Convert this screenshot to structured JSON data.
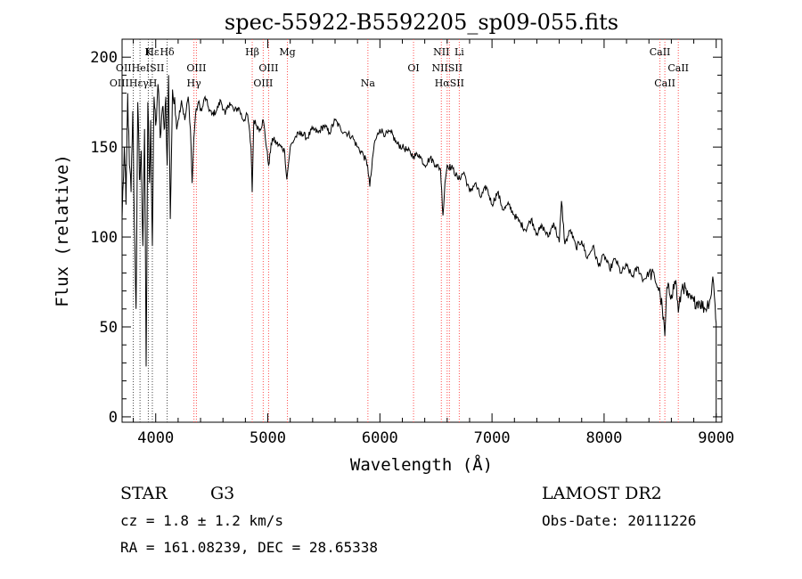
{
  "chart_data": {
    "type": "line",
    "title": "spec-55922-B5592205_sp09-055.fits",
    "xlabel": "Wavelength (Å)",
    "ylabel": "Flux (relative)",
    "xlim": [
      3700,
      9050
    ],
    "ylim": [
      -3,
      210
    ],
    "xticks": [
      4000,
      5000,
      6000,
      7000,
      8000,
      9000
    ],
    "yticks": [
      0,
      50,
      100,
      150,
      200
    ],
    "grid": false,
    "colors": {
      "line": "#000000",
      "marker": "#ff4d4d",
      "marker_dark": "#444444"
    },
    "series": [
      {
        "x": [
          3700,
          3720,
          3735,
          3750,
          3765,
          3780,
          3795,
          3810,
          3825,
          3840,
          3855,
          3870,
          3885,
          3900,
          3915,
          3930,
          3945,
          3955,
          3970,
          3985,
          4000,
          4020,
          4040,
          4060,
          4075,
          4090,
          4102,
          4115,
          4130,
          4150,
          4175,
          4200,
          4230,
          4260,
          4290,
          4310,
          4325,
          4340,
          4355,
          4380,
          4410,
          4440,
          4470,
          4500,
          4540,
          4580,
          4620,
          4660,
          4700,
          4740,
          4780,
          4820,
          4850,
          4861,
          4875,
          4900,
          4930,
          4960,
          5007,
          5040,
          5080,
          5120,
          5150,
          5170,
          5183,
          5200,
          5250,
          5300,
          5350,
          5400,
          5450,
          5500,
          5550,
          5600,
          5650,
          5700,
          5750,
          5800,
          5850,
          5890,
          5910,
          5950,
          6000,
          6050,
          6100,
          6150,
          6200,
          6250,
          6300,
          6350,
          6400,
          6450,
          6500,
          6540,
          6563,
          6580,
          6600,
          6650,
          6700,
          6750,
          6800,
          6850,
          6900,
          6950,
          7000,
          7050,
          7100,
          7150,
          7200,
          7250,
          7300,
          7350,
          7400,
          7450,
          7500,
          7550,
          7600,
          7620,
          7650,
          7700,
          7750,
          7800,
          7850,
          7900,
          7950,
          8000,
          8050,
          8100,
          8150,
          8200,
          8250,
          8300,
          8350,
          8400,
          8450,
          8480,
          8500,
          8520,
          8542,
          8560,
          8600,
          8640,
          8662,
          8700,
          8750,
          8800,
          8850,
          8900,
          8950,
          8970,
          8990,
          9000
        ],
        "y": [
          110,
          150,
          118,
          180,
          140,
          125,
          170,
          108,
          60,
          175,
          132,
          148,
          95,
          160,
          28,
          175,
          130,
          165,
          95,
          178,
          162,
          185,
          155,
          172,
          160,
          178,
          140,
          190,
          110,
          182,
          168,
          165,
          176,
          165,
          178,
          160,
          130,
          155,
          168,
          175,
          170,
          178,
          172,
          168,
          170,
          176,
          168,
          175,
          170,
          172,
          165,
          168,
          150,
          125,
          165,
          162,
          160,
          165,
          140,
          155,
          152,
          150,
          148,
          132,
          140,
          150,
          156,
          158,
          155,
          160,
          158,
          162,
          158,
          165,
          160,
          158,
          156,
          150,
          146,
          140,
          128,
          152,
          160,
          157,
          158,
          152,
          150,
          148,
          145,
          146,
          140,
          144,
          140,
          138,
          112,
          130,
          140,
          138,
          132,
          136,
          125,
          130,
          122,
          128,
          118,
          125,
          115,
          118,
          112,
          108,
          104,
          110,
          102,
          106,
          100,
          108,
          97,
          120,
          96,
          104,
          94,
          98,
          88,
          95,
          84,
          90,
          82,
          88,
          80,
          84,
          78,
          83,
          76,
          80,
          78,
          72,
          68,
          60,
          45,
          72,
          68,
          76,
          58,
          74,
          66,
          64,
          64,
          60,
          66,
          78,
          62,
          52
        ]
      }
    ],
    "line_markers": [
      {
        "label": "Hε",
        "x": 3970,
        "row": 0,
        "shade": "dark"
      },
      {
        "label": "K",
        "x": 3934,
        "row": 0,
        "shade": "dark"
      },
      {
        "label": "Hδ",
        "x": 4102,
        "row": 0,
        "shade": "dark"
      },
      {
        "label": "OIIHeISII",
        "x": 3860,
        "row": 1,
        "shade": "dark"
      },
      {
        "label": "OIII",
        "x": 4363,
        "row": 1,
        "shade": "red"
      },
      {
        "label": "OIIIHεγH",
        "x": 3800,
        "row": 2,
        "shade": "dark"
      },
      {
        "label": "Hγ",
        "x": 4341,
        "row": 2,
        "shade": "red"
      },
      {
        "label": "Hβ",
        "x": 4861,
        "row": 0,
        "shade": "red"
      },
      {
        "label": "Mg",
        "x": 5175,
        "row": 0,
        "shade": "red"
      },
      {
        "label": "OIII",
        "x": 5007,
        "row": 1,
        "shade": "red"
      },
      {
        "label": "OIII",
        "x": 4959,
        "row": 2,
        "shade": "red"
      },
      {
        "label": "Na",
        "x": 5893,
        "row": 2,
        "shade": "red"
      },
      {
        "label": "NII",
        "x": 6548,
        "row": 0,
        "shade": "red"
      },
      {
        "label": "Li",
        "x": 6708,
        "row": 0,
        "shade": "red"
      },
      {
        "label": "OI",
        "x": 6300,
        "row": 1,
        "shade": "red"
      },
      {
        "label": "NIISII",
        "x": 6600,
        "row": 1,
        "shade": "red"
      },
      {
        "label": "HαSII",
        "x": 6620,
        "row": 2,
        "shade": "red"
      },
      {
        "label": "CaII",
        "x": 8498,
        "row": 0,
        "shade": "red"
      },
      {
        "label": "CaII",
        "x": 8662,
        "row": 1,
        "shade": "red"
      },
      {
        "label": "CaII",
        "x": 8542,
        "row": 2,
        "shade": "red"
      }
    ]
  },
  "info": {
    "object_type": "STAR",
    "subclass": "G3",
    "survey": "LAMOST DR2",
    "cz": "cz = 1.8 ± 1.2 km/s",
    "obs_date": "Obs-Date: 20111226",
    "coords": "RA = 161.08239, DEC =  28.65338"
  }
}
